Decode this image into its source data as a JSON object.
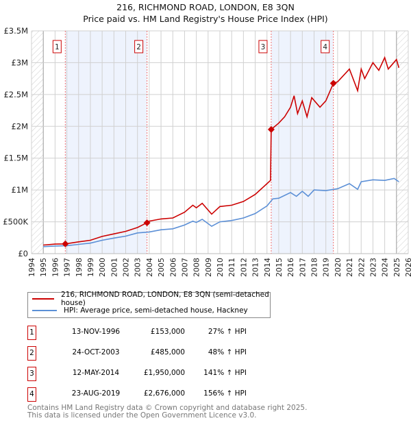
{
  "title": "216, RICHMOND ROAD, LONDON, E8 3QN",
  "subtitle": "Price paid vs. HM Land Registry's House Price Index (HPI)",
  "chart_data": {
    "type": "line",
    "xlim": [
      1994,
      2026
    ],
    "ylim": [
      0,
      3500000
    ],
    "x_ticks": [
      1994,
      1995,
      1996,
      1997,
      1998,
      1999,
      2000,
      2001,
      2002,
      2003,
      2004,
      2005,
      2006,
      2007,
      2008,
      2009,
      2010,
      2011,
      2012,
      2013,
      2014,
      2015,
      2016,
      2017,
      2018,
      2019,
      2020,
      2021,
      2022,
      2023,
      2024,
      2025,
      2026
    ],
    "y_ticks": [
      {
        "v": 0,
        "label": "£0"
      },
      {
        "v": 500000,
        "label": "£500K"
      },
      {
        "v": 1000000,
        "label": "£1M"
      },
      {
        "v": 1500000,
        "label": "£1.5M"
      },
      {
        "v": 2000000,
        "label": "£2M"
      },
      {
        "v": 2500000,
        "label": "£2.5M"
      },
      {
        "v": 3000000,
        "label": "£3M"
      },
      {
        "v": 3500000,
        "label": "£3.5M"
      }
    ],
    "grid": true,
    "data_range": [
      1995,
      2025
    ],
    "shaded_periods": [
      [
        1996.87,
        2003.81
      ],
      [
        2014.36,
        2019.64
      ]
    ],
    "series": [
      {
        "name": "216, RICHMOND ROAD, LONDON, E8 3QN (semi-detached house)",
        "color": "#cc0000",
        "x": [
          1995,
          1996,
          1996.87,
          1998,
          1999,
          2000,
          2001,
          2002,
          2003,
          2003.81,
          2004,
          2005,
          2006,
          2007,
          2007.7,
          2008,
          2008.5,
          2009.3,
          2010,
          2011,
          2012,
          2013,
          2014,
          2014.3,
          2014.36,
          2015,
          2015.5,
          2016,
          2016.3,
          2016.6,
          2017,
          2017.4,
          2017.8,
          2018.5,
          2019,
          2019.64,
          2020,
          2021,
          2021.7,
          2022,
          2022.3,
          2023,
          2023.5,
          2024,
          2024.3,
          2025,
          2025.2
        ],
        "y": [
          135000,
          150000,
          153000,
          185000,
          210000,
          270000,
          310000,
          350000,
          410000,
          485000,
          510000,
          545000,
          560000,
          650000,
          760000,
          720000,
          790000,
          620000,
          740000,
          760000,
          820000,
          930000,
          1100000,
          1150000,
          1950000,
          2050000,
          2150000,
          2300000,
          2480000,
          2200000,
          2400000,
          2150000,
          2450000,
          2300000,
          2400000,
          2676000,
          2700000,
          2900000,
          2560000,
          2900000,
          2750000,
          3000000,
          2880000,
          3080000,
          2900000,
          3050000,
          2920000
        ]
      },
      {
        "name": "HPI: Average price, semi-detached house, Hackney",
        "color": "#5b8fd6",
        "x": [
          1995,
          1996,
          1997,
          1998,
          1999,
          2000,
          2001,
          2002,
          2003,
          2004,
          2005,
          2006,
          2007,
          2007.7,
          2008,
          2008.5,
          2009.3,
          2010,
          2011,
          2012,
          2013,
          2014,
          2014.5,
          2015,
          2016,
          2016.5,
          2017,
          2017.5,
          2018,
          2019,
          2020,
          2021,
          2021.7,
          2022,
          2023,
          2024,
          2024.8,
          2025.2
        ],
        "y": [
          110000,
          120000,
          125000,
          145000,
          165000,
          210000,
          245000,
          275000,
          325000,
          340000,
          375000,
          390000,
          450000,
          510000,
          490000,
          540000,
          430000,
          500000,
          520000,
          560000,
          630000,
          750000,
          860000,
          870000,
          960000,
          900000,
          980000,
          900000,
          1000000,
          990000,
          1020000,
          1100000,
          1010000,
          1130000,
          1160000,
          1150000,
          1180000,
          1130000
        ]
      }
    ],
    "sales": [
      {
        "n": "1",
        "x": 1996.87,
        "y": 153000
      },
      {
        "n": "2",
        "x": 2003.81,
        "y": 485000
      },
      {
        "n": "3",
        "x": 2014.36,
        "y": 1950000
      },
      {
        "n": "4",
        "x": 2019.64,
        "y": 2676000
      }
    ]
  },
  "legend": {
    "property": "216, RICHMOND ROAD, LONDON, E8 3QN (semi-detached house)",
    "hpi": "HPI: Average price, semi-detached house, Hackney"
  },
  "transactions": [
    {
      "n": "1",
      "date": "13-NOV-1996",
      "price": "£153,000",
      "hpi": "27% ↑ HPI"
    },
    {
      "n": "2",
      "date": "24-OCT-2003",
      "price": "£485,000",
      "hpi": "48% ↑ HPI"
    },
    {
      "n": "3",
      "date": "12-MAY-2014",
      "price": "£1,950,000",
      "hpi": "141% ↑ HPI"
    },
    {
      "n": "4",
      "date": "23-AUG-2019",
      "price": "£2,676,000",
      "hpi": "156% ↑ HPI"
    }
  ],
  "footer": {
    "line1": "Contains HM Land Registry data © Crown copyright and database right 2025.",
    "line2": "This data is licensed under the Open Government Licence v3.0."
  }
}
